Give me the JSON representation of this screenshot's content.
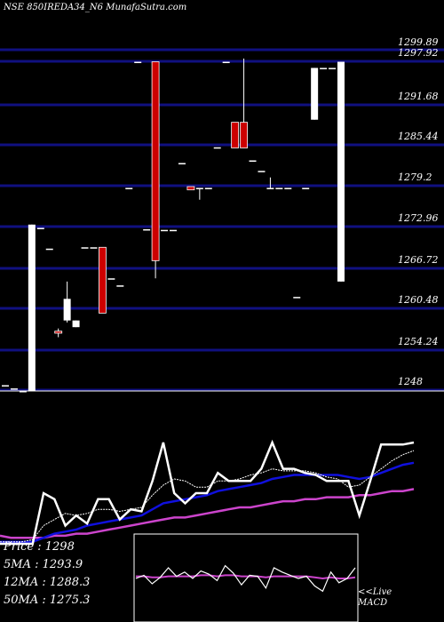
{
  "header": "NSE 850IREDA34_N6  MunafaSutra.com",
  "chart_data": {
    "type": "candlestick",
    "price_axis": {
      "min": 1248,
      "max": 1299.89,
      "ticks": [
        1299.89,
        1297.92,
        1291.68,
        1285.44,
        1279.2,
        1272.96,
        1266.72,
        1260.48,
        1254.24,
        1248
      ]
    },
    "candles": [
      {
        "o": 1248.9,
        "h": 1248.9,
        "l": 1248.9,
        "c": 1248.9,
        "color": "white"
      },
      {
        "o": 1248.4,
        "h": 1248.4,
        "l": 1248.4,
        "c": 1248.4,
        "color": "white"
      },
      {
        "o": 1248.0,
        "h": 1248.0,
        "l": 1248.0,
        "c": 1248.0,
        "color": "white"
      },
      {
        "o": 1248.0,
        "h": 1273.4,
        "l": 1248.0,
        "c": 1273.4,
        "color": "white"
      },
      {
        "o": 1272.9,
        "h": 1272.9,
        "l": 1272.9,
        "c": 1272.9,
        "color": "white"
      },
      {
        "o": 1269.8,
        "h": 1269.8,
        "l": 1269.8,
        "c": 1269.8,
        "color": "white"
      },
      {
        "o": 1257.2,
        "h": 1257.6,
        "l": 1256.3,
        "c": 1256.9,
        "color": "red"
      },
      {
        "o": 1258.8,
        "h": 1264.8,
        "l": 1258.5,
        "c": 1262.1,
        "color": "white"
      },
      {
        "o": 1258.8,
        "h": 1258.8,
        "l": 1257.8,
        "c": 1257.8,
        "color": "white"
      },
      {
        "o": 1270.0,
        "h": 1270.0,
        "l": 1270.0,
        "c": 1270.0,
        "color": "white"
      },
      {
        "o": 1270.0,
        "h": 1270.0,
        "l": 1270.0,
        "c": 1270.0,
        "color": "white"
      },
      {
        "o": 1270.0,
        "h": 1270.0,
        "l": 1259.9,
        "c": 1259.9,
        "color": "red"
      },
      {
        "o": 1265.3,
        "h": 1265.3,
        "l": 1265.3,
        "c": 1265.3,
        "color": "white"
      },
      {
        "o": 1264.2,
        "h": 1264.2,
        "l": 1264.2,
        "c": 1264.2,
        "color": "white"
      },
      {
        "o": 1279.0,
        "h": 1279.0,
        "l": 1279.0,
        "c": 1279.0,
        "color": "white"
      },
      {
        "o": 1298.0,
        "h": 1298.0,
        "l": 1298.0,
        "c": 1298.0,
        "color": "white"
      },
      {
        "o": 1272.7,
        "h": 1272.7,
        "l": 1272.7,
        "c": 1272.7,
        "color": "white"
      },
      {
        "o": 1298.0,
        "h": 1298.0,
        "l": 1265.3,
        "c": 1268.0,
        "color": "red"
      },
      {
        "o": 1272.6,
        "h": 1272.6,
        "l": 1272.6,
        "c": 1272.6,
        "color": "white"
      },
      {
        "o": 1272.6,
        "h": 1272.6,
        "l": 1272.6,
        "c": 1272.6,
        "color": "white"
      },
      {
        "o": 1282.8,
        "h": 1282.8,
        "l": 1282.8,
        "c": 1282.8,
        "color": "white"
      },
      {
        "o": 1279.2,
        "h": 1279.2,
        "l": 1278.7,
        "c": 1278.7,
        "color": "red"
      },
      {
        "o": 1279.0,
        "h": 1279.0,
        "l": 1277.2,
        "c": 1279.0,
        "color": "white"
      },
      {
        "o": 1279.0,
        "h": 1279.0,
        "l": 1279.0,
        "c": 1279.0,
        "color": "white"
      },
      {
        "o": 1285.2,
        "h": 1285.2,
        "l": 1285.2,
        "c": 1285.2,
        "color": "white"
      },
      {
        "o": 1298.0,
        "h": 1298.0,
        "l": 1298.0,
        "c": 1298.0,
        "color": "white"
      },
      {
        "o": 1289.1,
        "h": 1289.1,
        "l": 1285.1,
        "c": 1285.1,
        "color": "red"
      },
      {
        "o": 1289.1,
        "h": 1298.6,
        "l": 1285.1,
        "c": 1285.1,
        "color": "red"
      },
      {
        "o": 1283.2,
        "h": 1283.2,
        "l": 1283.2,
        "c": 1283.2,
        "color": "white"
      },
      {
        "o": 1281.6,
        "h": 1281.6,
        "l": 1281.6,
        "c": 1281.6,
        "color": "white"
      },
      {
        "o": 1279.0,
        "h": 1280.6,
        "l": 1279.0,
        "c": 1279.0,
        "color": "white"
      },
      {
        "o": 1279.0,
        "h": 1279.0,
        "l": 1279.0,
        "c": 1279.0,
        "color": "white"
      },
      {
        "o": 1279.0,
        "h": 1279.0,
        "l": 1279.0,
        "c": 1279.0,
        "color": "white"
      },
      {
        "o": 1262.4,
        "h": 1262.4,
        "l": 1262.4,
        "c": 1262.4,
        "color": "white"
      },
      {
        "o": 1279.0,
        "h": 1279.0,
        "l": 1279.0,
        "c": 1279.0,
        "color": "white"
      },
      {
        "o": 1289.5,
        "h": 1297.1,
        "l": 1289.5,
        "c": 1297.1,
        "color": "white"
      },
      {
        "o": 1297.1,
        "h": 1297.1,
        "l": 1297.1,
        "c": 1297.1,
        "color": "white"
      },
      {
        "o": 1297.1,
        "h": 1297.1,
        "l": 1297.1,
        "c": 1297.1,
        "color": "white"
      },
      {
        "o": 1264.8,
        "h": 1298.0,
        "l": 1264.8,
        "c": 1298.0,
        "color": "white"
      }
    ],
    "lower_panel": {
      "price": [
        1248,
        1248,
        1248,
        1248,
        1273,
        1270,
        1257,
        1262,
        1258,
        1270,
        1270,
        1260,
        1265,
        1264,
        1279,
        1298,
        1273,
        1268,
        1273,
        1273,
        1283,
        1279,
        1279,
        1279,
        1285,
        1298,
        1285,
        1285,
        1283,
        1282,
        1279,
        1279,
        1279,
        1262,
        1279,
        1297,
        1297,
        1297,
        1298
      ],
      "ma5": [
        1249,
        1249,
        1249,
        1250,
        1257,
        1260,
        1263,
        1262,
        1263,
        1265,
        1265,
        1264,
        1265,
        1266,
        1272,
        1277,
        1280,
        1279,
        1276,
        1276,
        1279,
        1279,
        1280,
        1282,
        1283,
        1285,
        1284,
        1284,
        1284,
        1283,
        1281,
        1280,
        1276,
        1277,
        1281,
        1285,
        1289,
        1292,
        1294
      ],
      "ma12": [
        1249,
        1249,
        1249,
        1249,
        1251,
        1253,
        1254,
        1255,
        1257,
        1258,
        1259,
        1260,
        1261,
        1262,
        1265,
        1268,
        1269,
        1270,
        1271,
        1272,
        1274,
        1275,
        1276,
        1277,
        1278,
        1280,
        1281,
        1282,
        1282,
        1282,
        1282,
        1282,
        1281,
        1280,
        1281,
        1283,
        1285,
        1287,
        1288
      ],
      "ma50": [
        1252,
        1251,
        1251,
        1251,
        1251,
        1252,
        1252,
        1253,
        1253,
        1254,
        1255,
        1256,
        1257,
        1258,
        1259,
        1260,
        1261,
        1261,
        1262,
        1263,
        1264,
        1265,
        1266,
        1266,
        1267,
        1268,
        1269,
        1269,
        1270,
        1270,
        1271,
        1271,
        1271,
        1272,
        1272,
        1273,
        1274,
        1274,
        1275
      ]
    },
    "macd": {
      "macd": [
        0.0,
        0.3,
        -0.5,
        0.1,
        1.0,
        0.2,
        0.6,
        0.0,
        0.7,
        0.4,
        -0.2,
        1.2,
        0.5,
        -0.6,
        0.3,
        0.2,
        -0.9,
        1.0,
        0.6,
        0.3,
        0.0,
        0.2,
        -0.7,
        -1.2,
        0.6,
        -0.4,
        0.0,
        1.0
      ],
      "signal": [
        0.2,
        0.2,
        0.1,
        0.1,
        0.2,
        0.2,
        0.2,
        0.2,
        0.3,
        0.3,
        0.2,
        0.3,
        0.3,
        0.2,
        0.2,
        0.2,
        0.1,
        0.2,
        0.2,
        0.2,
        0.2,
        0.2,
        0.1,
        0.0,
        0.1,
        0.0,
        0.0,
        0.1
      ]
    },
    "colors": {
      "grid": "#101080",
      "up": "#ffffff",
      "down": "#cc0000",
      "price_line": "#ffffff",
      "ma5_line": "#ffffff",
      "ma12_line": "#1010dd",
      "ma50_line": "#cc44cc",
      "macd_line": "#ffffff",
      "signal_line": "#cc44cc"
    }
  },
  "stats": {
    "price_label": "Price",
    "price_value": "1298",
    "ma5_label": "5MA",
    "ma5_value": "1293.9",
    "ma12_label": "12MA",
    "ma12_value": "1288.3",
    "ma50_label": "50MA",
    "ma50_value": "1275.3"
  },
  "macd_label_line1": "<<Live",
  "macd_label_line2": "MACD"
}
